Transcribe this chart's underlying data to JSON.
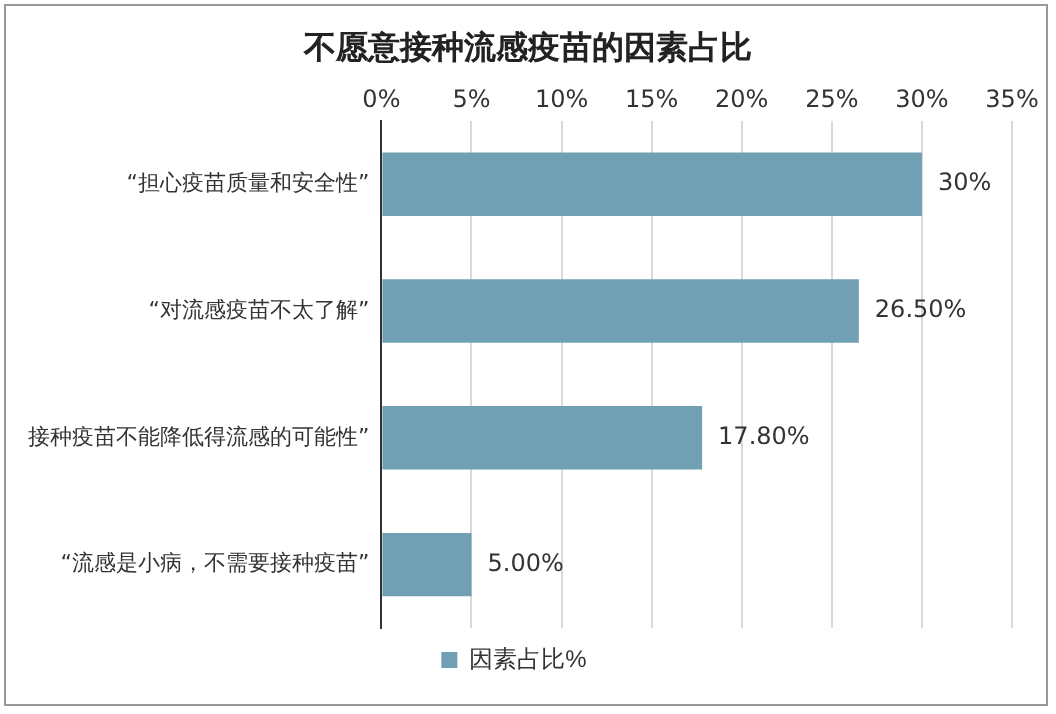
{
  "chart_data": {
    "type": "bar",
    "orientation": "horizontal",
    "title": "不愿意接种流感疫苗的因素占比",
    "categories": [
      "“担心疫苗质量和安全性”",
      "“对流感疫苗不太了解”",
      "接种疫苗不能降低得流感的可能性”",
      "“流感是小病，不需要接种疫苗”"
    ],
    "series": [
      {
        "name": "因素占比%",
        "color": "#71a0b4",
        "values": [
          30,
          26.5,
          17.8,
          5
        ],
        "value_labels": [
          "30%",
          "26.50%",
          "17.80%",
          "5.00%"
        ]
      }
    ],
    "xlim": [
      0,
      35
    ],
    "xticks": [
      {
        "value": 0,
        "label": "0%"
      },
      {
        "value": 5,
        "label": "5%"
      },
      {
        "value": 10,
        "label": "10%"
      },
      {
        "value": 15,
        "label": "15%"
      },
      {
        "value": 20,
        "label": "20%"
      },
      {
        "value": 25,
        "label": "25%"
      },
      {
        "value": 30,
        "label": "30%"
      },
      {
        "value": 35,
        "label": "35%"
      }
    ],
    "grid": "x",
    "legend": "bottom"
  }
}
